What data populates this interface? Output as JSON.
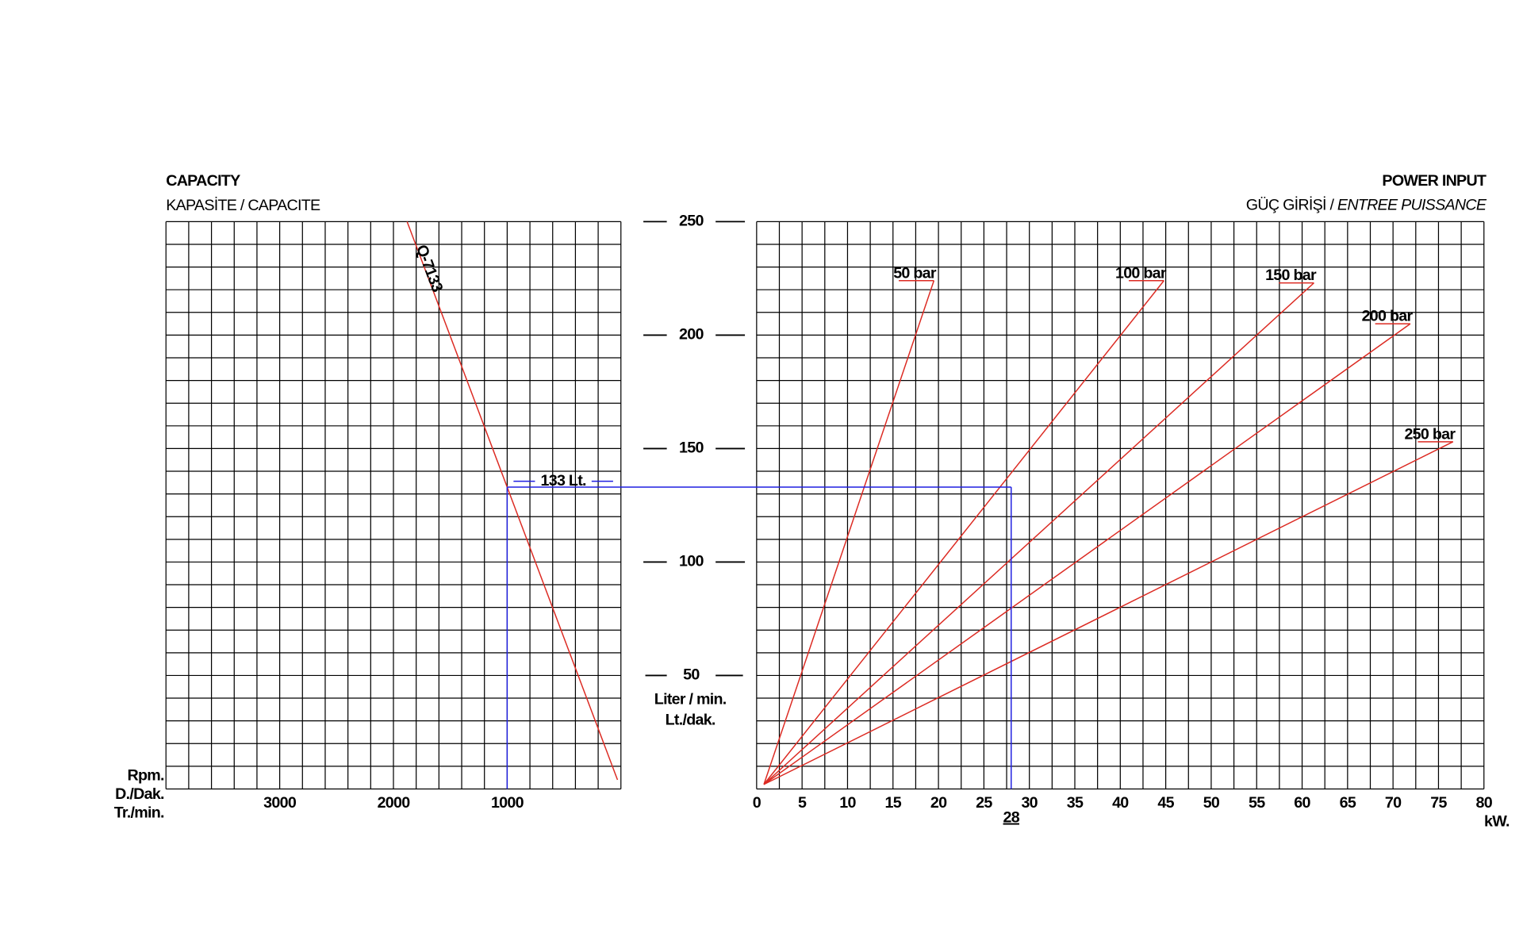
{
  "chart_data": [
    {
      "type": "line",
      "title": "CAPACITY",
      "subtitle": "KAPASİTE / CAPACITE",
      "xlabel": [
        "Rpm.",
        "D./Dak.",
        "Tr./min."
      ],
      "xlim": [
        4000,
        0
      ],
      "xticks": [
        3000,
        2000,
        1000
      ],
      "ylim": [
        0,
        250
      ],
      "grid": true,
      "grid_x_step": 200,
      "grid_y_step": 10,
      "series": [
        {
          "name": "Q-7133",
          "color": "#dc2a22",
          "x": [
            1880,
            30
          ],
          "values": [
            250,
            4
          ]
        }
      ],
      "guide": {
        "color": "#1f1fe0",
        "x": 1000,
        "y": 133,
        "label": "133 Lt."
      }
    },
    {
      "type": "line",
      "title": "POWER INPUT",
      "subtitle": "GÜÇ GİRİŞİ /",
      "subtitle_italic": "ENTREE PUISSANCE",
      "xlabel": "kW.",
      "xlim": [
        0,
        80
      ],
      "xticks": [
        0,
        5,
        10,
        15,
        20,
        25,
        30,
        35,
        40,
        45,
        50,
        55,
        60,
        65,
        70,
        75,
        80
      ],
      "ylim": [
        0,
        250
      ],
      "grid": true,
      "grid_x_step": 2.5,
      "grid_y_step": 10,
      "series": [
        {
          "name": "50 bar",
          "color": "#dc2a22",
          "x": [
            0.8,
            19.5
          ],
          "values": [
            2,
            224
          ]
        },
        {
          "name": "100 bar",
          "color": "#dc2a22",
          "x": [
            0.8,
            44.8
          ],
          "values": [
            2,
            224
          ]
        },
        {
          "name": "150 bar",
          "color": "#dc2a22",
          "x": [
            0.8,
            61.3
          ],
          "values": [
            2,
            223
          ]
        },
        {
          "name": "200 bar",
          "color": "#dc2a22",
          "x": [
            0.8,
            71.9
          ],
          "values": [
            2,
            205
          ]
        },
        {
          "name": "250 bar",
          "color": "#dc2a22",
          "x": [
            0.8,
            76.6
          ],
          "values": [
            2,
            153
          ]
        }
      ],
      "guide": {
        "color": "#1f1fe0",
        "x": 28,
        "y": 133,
        "label": "28"
      }
    }
  ],
  "y_axis": {
    "ticks": [
      50,
      100,
      150,
      200,
      250
    ],
    "label": [
      "Liter / min.",
      "Lt./dak."
    ]
  }
}
